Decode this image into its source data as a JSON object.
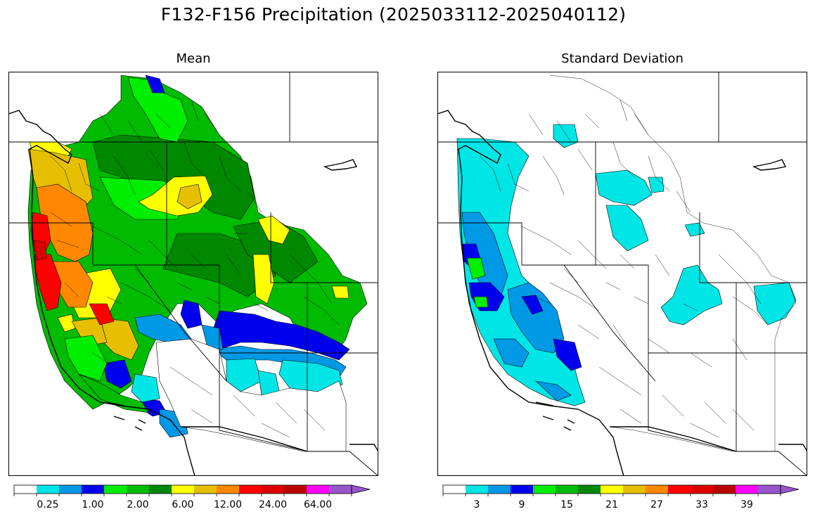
{
  "figure": {
    "title": "F132-F156 Precipitation (2025033112-2025040112)"
  },
  "panels": [
    {
      "title": "Mean"
    },
    {
      "title": "Standard Deviation"
    }
  ],
  "colormap": [
    "#ffffff",
    "#00e5e5",
    "#0099e6",
    "#0000ee",
    "#00ee00",
    "#00bb00",
    "#008800",
    "#ffff00",
    "#e5bf00",
    "#ff8800",
    "#ff0000",
    "#dd0000",
    "#bb0000",
    "#ff00ff",
    "#9955cc"
  ],
  "colorbars": [
    {
      "labels": [
        "0.25",
        "1.00",
        "2.00",
        "6.00",
        "12.00",
        "24.00",
        "64.00"
      ],
      "label_positions": [
        1,
        3,
        5,
        7,
        9,
        11,
        13
      ]
    },
    {
      "labels": [
        "3",
        "9",
        "15",
        "21",
        "27",
        "33",
        "39"
      ],
      "label_positions": [
        1,
        3,
        5,
        7,
        9,
        11,
        13
      ]
    }
  ]
}
